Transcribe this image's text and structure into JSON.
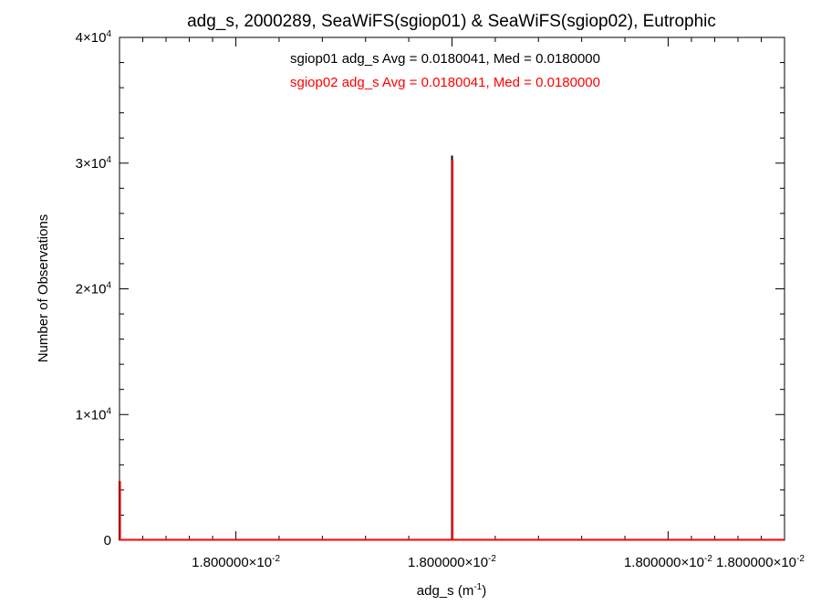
{
  "chart_data": {
    "type": "bar",
    "title": "adg_s, 2000289, SeaWiFS(sgiop01) & SeaWiFS(sgiop02), Eutrophic",
    "xlabel": {
      "base": "adg_s (m",
      "sup": "-1",
      "tail": ")"
    },
    "ylabel": "Number of Observations",
    "ylim": [
      0,
      40000
    ],
    "y_ticks": [
      {
        "value": 0,
        "mantissa": "0",
        "exp": ""
      },
      {
        "value": 10000,
        "mantissa": "1×10",
        "exp": "4"
      },
      {
        "value": 20000,
        "mantissa": "2×10",
        "exp": "4"
      },
      {
        "value": 30000,
        "mantissa": "3×10",
        "exp": "4"
      },
      {
        "value": 40000,
        "mantissa": "4×10",
        "exp": "4"
      }
    ],
    "x_ticks": [
      {
        "position": 0.175,
        "mantissa": "1.800000×10",
        "exp": "-2"
      },
      {
        "position": 0.5,
        "mantissa": "1.800000×10",
        "exp": "-2"
      },
      {
        "position": 0.825,
        "mantissa": "1.800000×10",
        "exp": "-2"
      },
      {
        "position": 1.0,
        "mantissa": "1.800000×10",
        "exp": "-2"
      }
    ],
    "series": [
      {
        "name": "sgiop01",
        "color": "#000000",
        "stats": "sgiop01 adg_s Avg = 0.0180041, Med = 0.0180000",
        "bins": [
          {
            "x": 0.0,
            "count": 4700
          },
          {
            "x": 0.5,
            "count": 30600
          }
        ]
      },
      {
        "name": "sgiop02",
        "color": "#ff0000",
        "stats": "sgiop02 adg_s Avg = 0.0180041, Med = 0.0180000",
        "bins": [
          {
            "x": 0.0,
            "count": 4700
          },
          {
            "x": 0.5,
            "count": 30300
          }
        ]
      }
    ]
  }
}
